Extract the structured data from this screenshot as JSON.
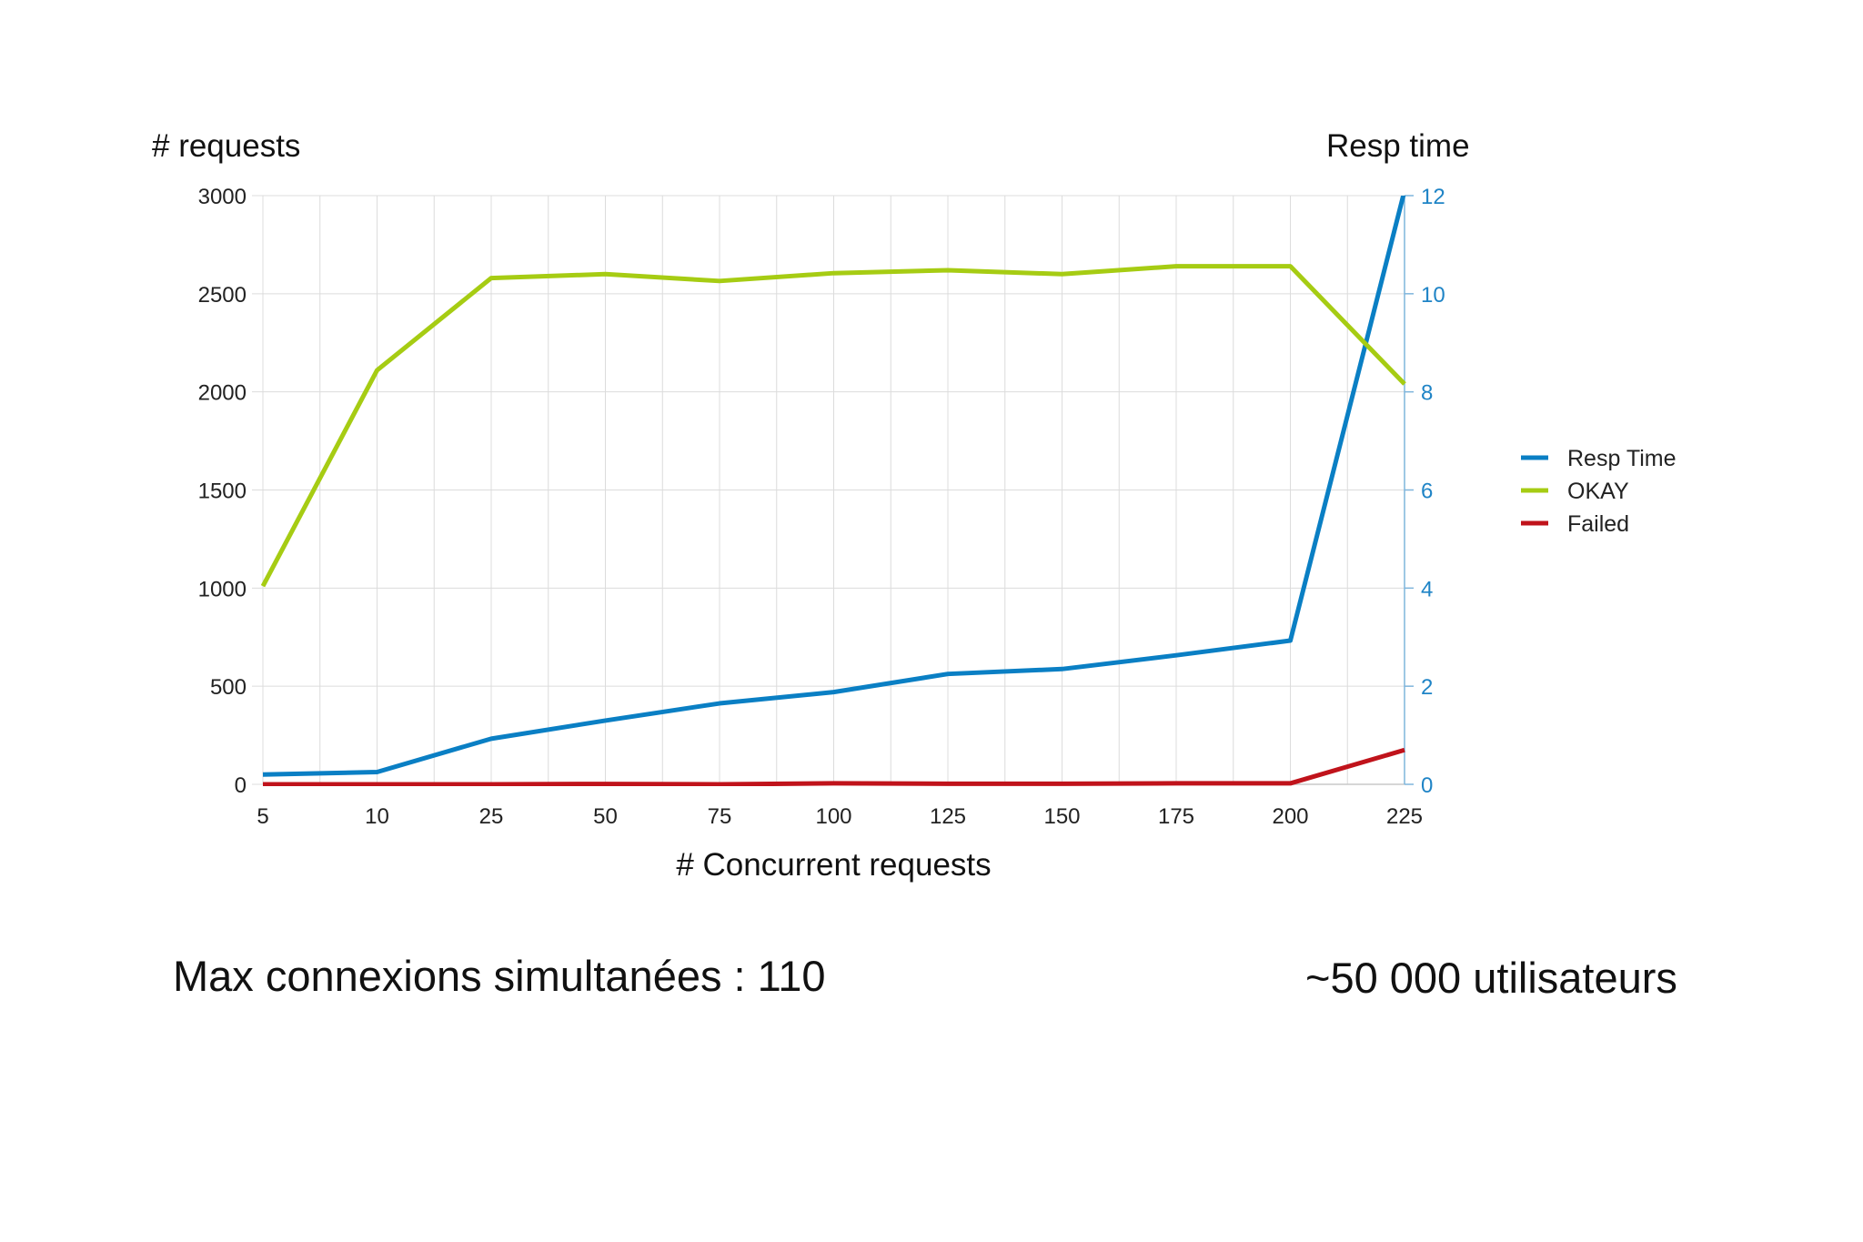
{
  "chart_data": {
    "type": "line",
    "categories": [
      "5",
      "10",
      "25",
      "50",
      "75",
      "100",
      "125",
      "150",
      "175",
      "200",
      "225"
    ],
    "xlabel": "# Concurrent requests",
    "ylabel_left": "# requests",
    "ylabel_right": "Resp time",
    "ylim_left": [
      0,
      3000
    ],
    "yticks_left": [
      0,
      500,
      1000,
      1500,
      2000,
      2500,
      3000
    ],
    "ylim_right": [
      0,
      12
    ],
    "yticks_right": [
      0,
      2,
      4,
      6,
      8,
      10,
      12
    ],
    "grid": true,
    "legend_position": "right",
    "series": [
      {
        "name": "Resp Time",
        "axis": "right",
        "color": "#0a7fc4",
        "values": [
          0.2,
          0.25,
          0.93,
          1.3,
          1.65,
          1.88,
          2.25,
          2.35,
          2.63,
          2.93,
          12.1
        ]
      },
      {
        "name": "OKAY",
        "axis": "left",
        "color": "#a6cc13",
        "values": [
          1010,
          2110,
          2580,
          2600,
          2565,
          2605,
          2620,
          2600,
          2640,
          2640,
          2040
        ]
      },
      {
        "name": "Failed",
        "axis": "left",
        "color": "#c0131b",
        "values": [
          0,
          0,
          0,
          2,
          0,
          5,
          3,
          3,
          5,
          5,
          175
        ]
      }
    ],
    "axis_colors": {
      "left_ticks": "#222222",
      "right_ticks": "#1f84c6",
      "right_axis_line": "#7fb5dc",
      "grid": "#dcdcdc"
    }
  },
  "captions": {
    "left": "Max connexions simultanées : 110",
    "right": "~50 000 utilisateurs"
  }
}
